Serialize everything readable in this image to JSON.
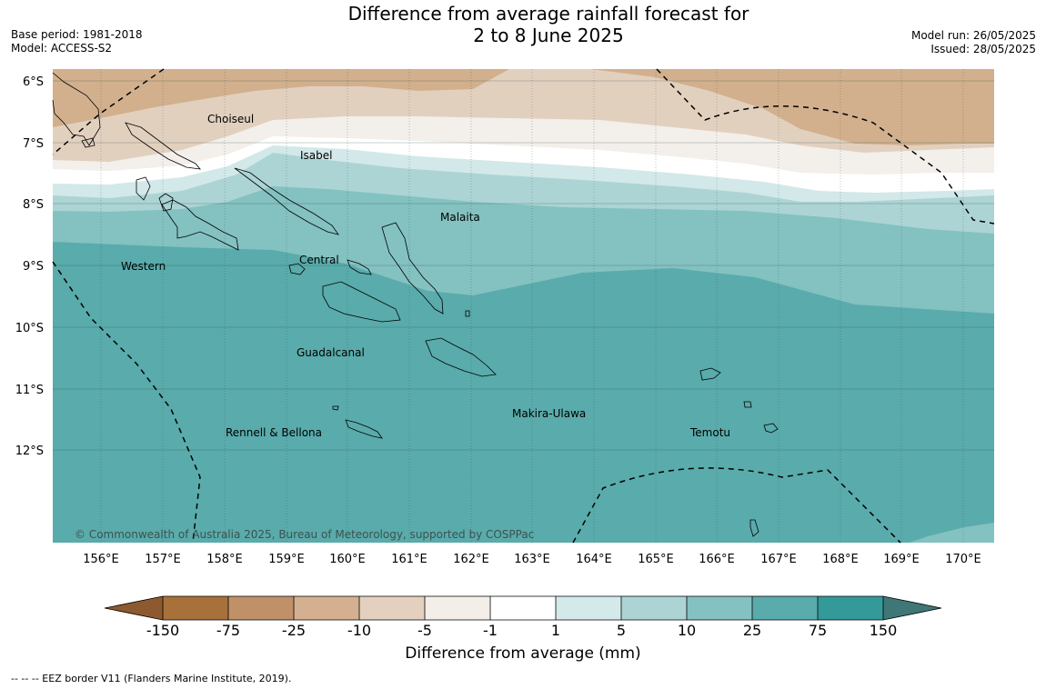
{
  "title": {
    "line1": "Difference from average rainfall forecast for",
    "line2": "2 to 8 June 2025"
  },
  "meta": {
    "base_period": "Base period: 1981-2018",
    "model": "Model: ACCESS-S2",
    "model_run": "Model run: 26/05/2025",
    "issued": "Issued: 28/05/2025"
  },
  "map": {
    "lat_labels": [
      "6°S",
      "7°S",
      "8°S",
      "9°S",
      "10°S",
      "11°S",
      "12°S"
    ],
    "lon_labels": [
      "156°E",
      "157°E",
      "158°E",
      "159°E",
      "160°E",
      "161°E",
      "162°E",
      "163°E",
      "164°E",
      "165°E",
      "166°E",
      "167°E",
      "168°E",
      "169°E",
      "170°E"
    ],
    "regions": [
      "Choiseul",
      "Isabel",
      "Malaita",
      "Western",
      "Central",
      "Guadalcanal",
      "Makira-Ulawa",
      "Rennell & Bellona",
      "Temotu"
    ],
    "copyright": "© Commonwealth of Australia 2025, Bureau of Meteorology, supported by COSPPac",
    "colors": {
      "dry_strong": "#d2b08d",
      "dry_mid": "#e2d0bf",
      "dry_light": "#f3efea",
      "neutral": "#ffffff",
      "wet_light": "#d3e8e8",
      "wet_mid": "#acd4d4",
      "wet_high": "#84c1c1",
      "wet_strong": "#5aabab"
    }
  },
  "colorbar": {
    "labels": [
      "-150",
      "-75",
      "-25",
      "-10",
      "-5",
      "-1",
      "1",
      "5",
      "10",
      "25",
      "75",
      "150"
    ],
    "colors": [
      "#a8703a",
      "#c09169",
      "#d4b091",
      "#e4d0be",
      "#f4eee8",
      "#ffffff",
      "#d4e9e9",
      "#acd4d4",
      "#84c1c1",
      "#5aabab",
      "#349999"
    ],
    "end_low": "#8c5a2e",
    "end_high": "#3f7676",
    "title": "Difference from average (mm)"
  },
  "footnote": "--  --  -- EEZ border V11 (Flanders Marine Institute, 2019)."
}
